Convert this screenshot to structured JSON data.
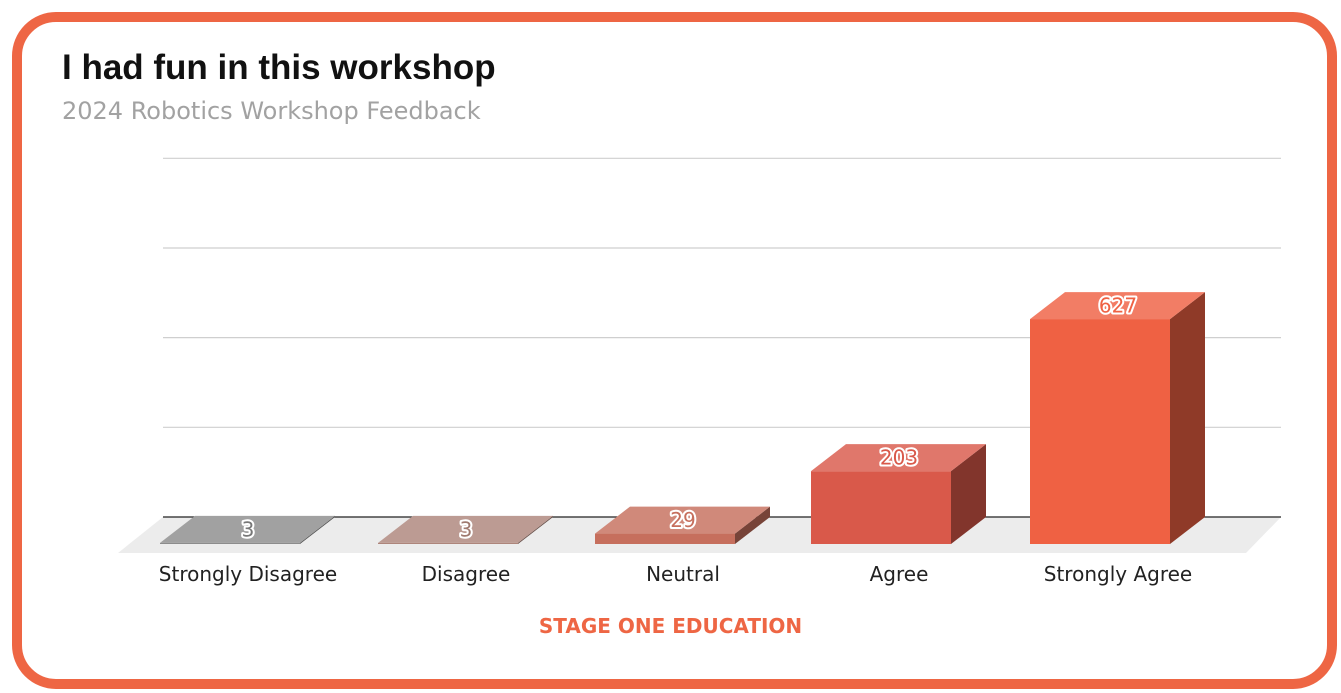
{
  "header": {
    "title": "I had fun in this workshop",
    "subtitle": "2024 Robotics Workshop Feedback"
  },
  "footer": {
    "brand": "STAGE ONE EDUCATION",
    "color": "#ee6644"
  },
  "colors": {
    "frame": "#ee6644",
    "grid": "#cfcfcf",
    "floor": "#ececec"
  },
  "chart_data": {
    "type": "bar",
    "style": "3d",
    "title": "I had fun in this workshop",
    "subtitle": "2024 Robotics Workshop Feedback",
    "categories": [
      "Strongly Disagree",
      "Disagree",
      "Neutral",
      "Agree",
      "Strongly Agree"
    ],
    "values": [
      3,
      3,
      29,
      203,
      627
    ],
    "colors": [
      "#8c8c8c",
      "#ad857b",
      "#c66f5d",
      "#d9594a",
      "#ef6143"
    ],
    "ylim": [
      0,
      1000
    ],
    "grid": true,
    "legend": "none",
    "data_labels": true
  }
}
